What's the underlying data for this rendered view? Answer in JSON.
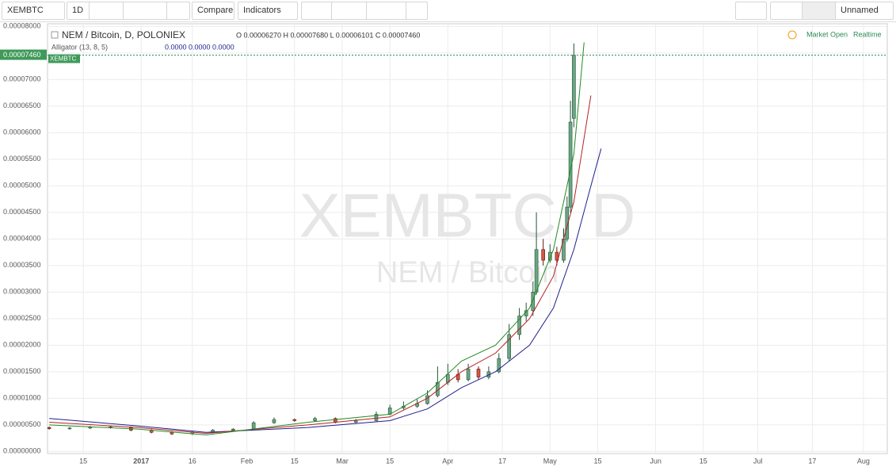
{
  "toolbar": {
    "symbol": "XEMBTC",
    "interval": "1D",
    "compare": "Compare",
    "indicators": "Indicators",
    "layout": "Unnamed"
  },
  "chart_data": {
    "type": "candlestick",
    "title": "NEM / Bitcoin, D, POLONIEX",
    "ohlc_text": "O 0.00006270 H 0.00007680 L 0.00006101 C 0.00007460",
    "indicator": "Alligator (13, 8, 5)",
    "indicator_values": "0.0000 0.0000 0.0000",
    "watermark": "XEMBTC, D",
    "watermark_sub": "NEM / Bitcoin",
    "status": "Market Open",
    "realtime": "Realtime",
    "last_price_label": "0.00007460",
    "last_symbol_label": "XEMBTC",
    "up_color": "#6ba583",
    "down_color": "#d75442",
    "x": [
      4,
      10,
      16,
      22,
      28,
      34,
      40,
      46,
      52,
      58,
      64,
      70,
      76,
      82,
      88,
      94,
      100,
      104,
      108,
      112,
      115,
      118,
      121,
      124,
      127,
      130,
      133,
      136,
      139,
      142,
      144,
      146,
      147,
      149,
      151,
      153,
      155,
      156,
      157,
      158
    ],
    "open": [
      4.5e-06,
      4.3e-06,
      4.4e-06,
      4.6e-06,
      4.5e-06,
      4e-06,
      3.6e-06,
      3.3e-06,
      3.6e-06,
      4e-06,
      4.2e-06,
      5.4e-06,
      6e-06,
      5.8e-06,
      6.2e-06,
      5.5e-06,
      5.8e-06,
      7e-06,
      8.2e-06,
      8.5e-06,
      9e-06,
      1.05e-05,
      1.3e-05,
      1.45e-05,
      1.35e-05,
      1.55e-05,
      1.4e-05,
      1.5e-05,
      1.75e-05,
      2.2e-05,
      2.55e-05,
      2.65e-05,
      3e-05,
      3.8e-05,
      3.6e-05,
      3.75e-05,
      3.6e-05,
      4e-05,
      4.6e-05,
      6.27e-05
    ],
    "high": [
      4.7e-06,
      4.6e-06,
      4.8e-06,
      4.8e-06,
      4.7e-06,
      4.2e-06,
      3.8e-06,
      3.8e-06,
      4.2e-06,
      4.4e-06,
      5.7e-06,
      6.4e-06,
      6.2e-06,
      6.5e-06,
      6.4e-06,
      6.1e-06,
      7.5e-06,
      8.8e-06,
      9.4e-06,
      9.8e-06,
      1.15e-05,
      1.6e-05,
      1.65e-05,
      1.55e-05,
      1.65e-05,
      1.6e-05,
      1.6e-05,
      1.85e-05,
      2.4e-05,
      2.7e-05,
      2.8e-05,
      3.2e-05,
      4.5e-05,
      4e-05,
      3.9e-05,
      3.85e-05,
      4.2e-05,
      4.8e-05,
      6.6e-05,
      7.68e-05
    ],
    "low": [
      4.1e-06,
      4.1e-06,
      4.2e-06,
      4.3e-06,
      3.8e-06,
      3.4e-06,
      3.1e-06,
      3.1e-06,
      3.4e-06,
      3.8e-06,
      4e-06,
      5.2e-06,
      5.6e-06,
      5.6e-06,
      5.3e-06,
      5.3e-06,
      5.6e-06,
      6.8e-06,
      7.9e-06,
      8.2e-06,
      8.8e-06,
      1.02e-05,
      1.25e-05,
      1.3e-05,
      1.32e-05,
      1.35e-05,
      1.36e-05,
      1.47e-05,
      1.7e-05,
      2.1e-05,
      2.45e-05,
      2.55e-05,
      2.95e-05,
      3.5e-05,
      3.55e-05,
      3.5e-05,
      3.55e-05,
      3.95e-05,
      4.5e-05,
      6.101e-05
    ],
    "close": [
      4.3e-06,
      4.4e-06,
      4.6e-06,
      4.5e-06,
      4e-06,
      3.6e-06,
      3.3e-06,
      3.6e-06,
      4e-06,
      4.2e-06,
      5.4e-06,
      6e-06,
      5.8e-06,
      6.2e-06,
      5.5e-06,
      5.8e-06,
      7e-06,
      8.2e-06,
      8.5e-06,
      9e-06,
      1.05e-05,
      1.3e-05,
      1.45e-05,
      1.35e-05,
      1.55e-05,
      1.4e-05,
      1.5e-05,
      1.75e-05,
      2.2e-05,
      2.55e-05,
      2.65e-05,
      3e-05,
      3.8e-05,
      3.6e-05,
      3.75e-05,
      3.6e-05,
      4e-05,
      4.6e-05,
      6.2e-05,
      7.46e-05
    ],
    "lines": [
      {
        "color": "#1f1f8f",
        "x": [
          4,
          30,
          50,
          80,
          104,
          115,
          125,
          135,
          145,
          152,
          158,
          163,
          166
        ],
        "values": [
          6.2e-06,
          4.8e-06,
          3.6e-06,
          4.5e-06,
          5.8e-06,
          8e-06,
          1.2e-05,
          1.5e-05,
          2e-05,
          2.7e-05,
          3.8e-05,
          5e-05,
          5.7e-05
        ]
      },
      {
        "color": "#b22222",
        "x": [
          4,
          30,
          50,
          80,
          104,
          115,
          125,
          135,
          145,
          152,
          158,
          163
        ],
        "values": [
          5.5e-06,
          4.5e-06,
          3.4e-06,
          5e-06,
          6.5e-06,
          1e-05,
          1.5e-05,
          1.85e-05,
          2.5e-05,
          3.3e-05,
          4.7e-05,
          6.7e-05
        ]
      },
      {
        "color": "#228b22",
        "x": [
          4,
          30,
          50,
          80,
          104,
          115,
          125,
          135,
          145,
          152,
          158,
          161
        ],
        "values": [
          5e-06,
          4.2e-06,
          3.1e-06,
          5.5e-06,
          7e-06,
          1.1e-05,
          1.7e-05,
          2e-05,
          2.7e-05,
          3.8e-05,
          5.6e-05,
          7.7e-05
        ]
      }
    ],
    "xlim": [
      3.5,
      250
    ],
    "xticks": [
      {
        "value": 14,
        "label": "15"
      },
      {
        "value": 31,
        "label": "2017"
      },
      {
        "value": 46,
        "label": "16"
      },
      {
        "value": 62,
        "label": "Feb"
      },
      {
        "value": 76,
        "label": "15"
      },
      {
        "value": 90,
        "label": "Mar"
      },
      {
        "value": 104,
        "label": "15"
      },
      {
        "value": 121,
        "label": "Apr"
      },
      {
        "value": 137,
        "label": "17"
      },
      {
        "value": 151,
        "label": "May"
      },
      {
        "value": 165,
        "label": "15"
      },
      {
        "value": 182,
        "label": "Jun"
      },
      {
        "value": 196,
        "label": "15"
      },
      {
        "value": 212,
        "label": "Jul"
      },
      {
        "value": 228,
        "label": "17"
      },
      {
        "value": 243,
        "label": "Aug"
      }
    ],
    "ylim": [
      -4e-07,
      8.05e-05
    ],
    "yticks": [
      {
        "value": 0,
        "label": "0.00000000"
      },
      {
        "value": 5e-06,
        "label": "0.00000500"
      },
      {
        "value": 1e-05,
        "label": "0.00001000"
      },
      {
        "value": 1.5e-05,
        "label": "0.00001500"
      },
      {
        "value": 2e-05,
        "label": "0.00002000"
      },
      {
        "value": 2.5e-05,
        "label": "0.00002500"
      },
      {
        "value": 3e-05,
        "label": "0.00003000"
      },
      {
        "value": 3.5e-05,
        "label": "0.00003500"
      },
      {
        "value": 4e-05,
        "label": "0.00004000"
      },
      {
        "value": 4.5e-05,
        "label": "0.00004500"
      },
      {
        "value": 5e-05,
        "label": "0.00005000"
      },
      {
        "value": 5.5e-05,
        "label": "0.00005500"
      },
      {
        "value": 6e-05,
        "label": "0.00006000"
      },
      {
        "value": 6.5e-05,
        "label": "0.00006500"
      },
      {
        "value": 7e-05,
        "label": "0.00007000"
      },
      {
        "value": 7.5e-05,
        "label": "0.00007500"
      },
      {
        "value": 8e-05,
        "label": "0.00008000"
      }
    ],
    "grid": true
  }
}
